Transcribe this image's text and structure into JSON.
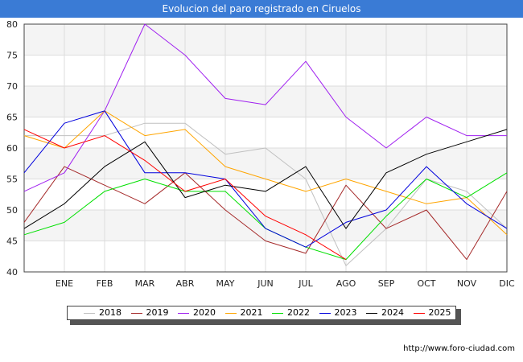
{
  "header": {
    "title": "Evolucion del paro registrado en Ciruelos"
  },
  "footer": {
    "url": "http://www.foro-ciudad.com"
  },
  "chart_data": {
    "type": "line",
    "title": "Evolucion del paro registrado en Ciruelos",
    "xlabel": "",
    "ylabel": "",
    "categories": [
      "",
      "ENE",
      "FEB",
      "MAR",
      "ABR",
      "MAY",
      "JUN",
      "JUL",
      "AGO",
      "SEP",
      "OCT",
      "NOV",
      "DIC"
    ],
    "ylim": [
      40,
      80
    ],
    "yticks": [
      "40",
      "45",
      "50",
      "55",
      "60",
      "65",
      "70",
      "75",
      "80"
    ],
    "grid": true,
    "legend_position": "bottom",
    "series": [
      {
        "name": "2018",
        "color": "#c0c0c0",
        "values": [
          62,
          62,
          62,
          64,
          64,
          59,
          60,
          55,
          41,
          47,
          55,
          53,
          47
        ]
      },
      {
        "name": "2019",
        "color": "#a52a2a",
        "values": [
          48,
          57,
          54,
          51,
          56,
          50,
          45,
          43,
          54,
          47,
          50,
          42,
          53
        ]
      },
      {
        "name": "2020",
        "color": "#a020f0",
        "values": [
          53,
          56,
          66,
          80,
          75,
          68,
          67,
          74,
          65,
          60,
          65,
          62,
          62
        ]
      },
      {
        "name": "2021",
        "color": "#ffa500",
        "values": [
          62,
          60,
          66,
          62,
          63,
          57,
          55,
          53,
          55,
          53,
          51,
          52,
          46
        ]
      },
      {
        "name": "2022",
        "color": "#00e000",
        "values": [
          46,
          48,
          53,
          55,
          53,
          53,
          47,
          44,
          42,
          49,
          55,
          52,
          56
        ]
      },
      {
        "name": "2023",
        "color": "#0000dd",
        "values": [
          56,
          64,
          66,
          56,
          56,
          55,
          47,
          44,
          48,
          50,
          57,
          51,
          47
        ]
      },
      {
        "name": "2024",
        "color": "#000000",
        "values": [
          47,
          51,
          57,
          61,
          52,
          54,
          53,
          57,
          47,
          56,
          59,
          61,
          63
        ]
      },
      {
        "name": "2025",
        "color": "#ff0000",
        "values": [
          63,
          60,
          62,
          58,
          53,
          55,
          49,
          46,
          42,
          null,
          null,
          null,
          null
        ]
      }
    ]
  }
}
